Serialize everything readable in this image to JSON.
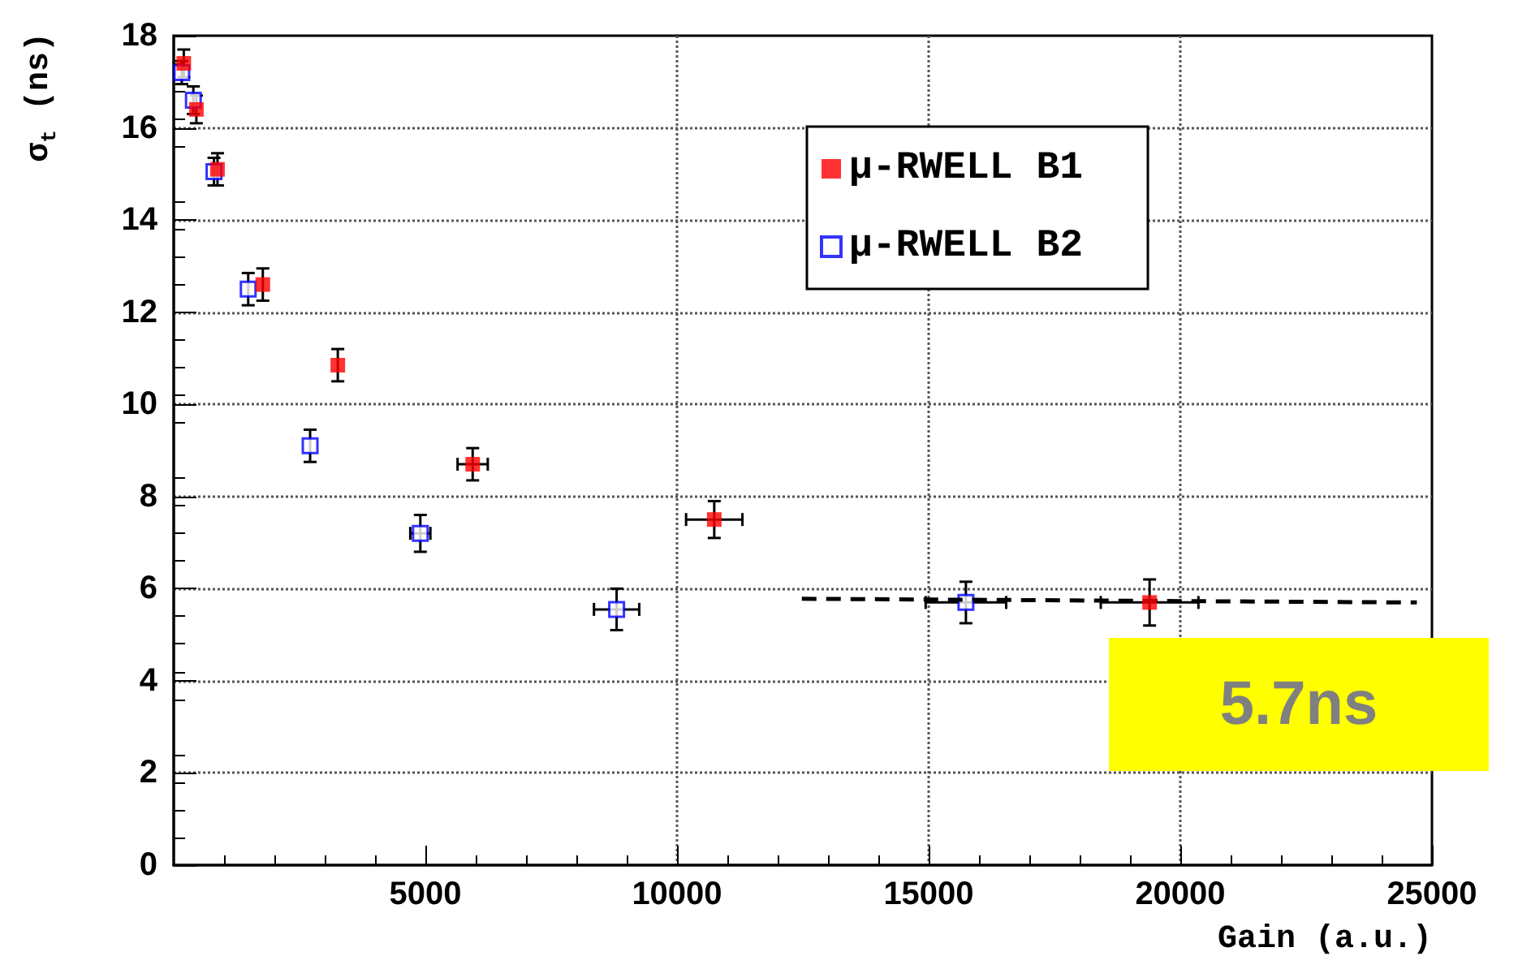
{
  "chart_data": {
    "type": "scatter",
    "xlabel": "Gain (a.u.)",
    "ylabel": "σ$_{t}$ (ns)",
    "xlim": [
      0,
      25000
    ],
    "xticks": [
      5000,
      10000,
      15000,
      20000,
      25000
    ],
    "ylim": [
      0,
      18
    ],
    "yticks": [
      0,
      2,
      4,
      6,
      8,
      10,
      12,
      14,
      16,
      18
    ],
    "grid": true,
    "legend": "top right",
    "marker": "square",
    "series": [
      {
        "name": "μ-RWELL B1",
        "color": "#ff0000",
        "x": [
          200,
          450,
          870,
          1770,
          3260,
          5940,
          10740,
          19390
        ],
        "values": [
          17.4,
          16.4,
          15.1,
          12.6,
          10.85,
          8.7,
          7.5,
          5.7
        ],
        "errors": [
          0.3,
          0.3,
          0.35,
          0.35,
          0.35,
          0.35,
          0.4,
          0.5
        ],
        "xerrors": [
          null,
          null,
          null,
          null,
          null,
          300,
          560,
          970
        ]
      },
      {
        "name": "μ-RWELL B2",
        "color": "#0000ff",
        "x": [
          160,
          390,
          800,
          1480,
          2710,
          4900,
          8800,
          15740
        ],
        "values": [
          17.2,
          16.6,
          15.05,
          12.5,
          9.1,
          7.2,
          5.55,
          5.7
        ],
        "errors": [
          0.25,
          0.3,
          0.3,
          0.35,
          0.35,
          0.4,
          0.45,
          0.45
        ],
        "xerrors": [
          null,
          null,
          null,
          null,
          null,
          200,
          450,
          800
        ]
      },
      {
        "type": "line",
        "color": "#000000",
        "line_style": "dashed",
        "marker": "none",
        "x": [
          12480,
          24700
        ],
        "values": [
          5.78,
          5.7
        ]
      }
    ],
    "annotations": [
      "5.7ns"
    ]
  }
}
